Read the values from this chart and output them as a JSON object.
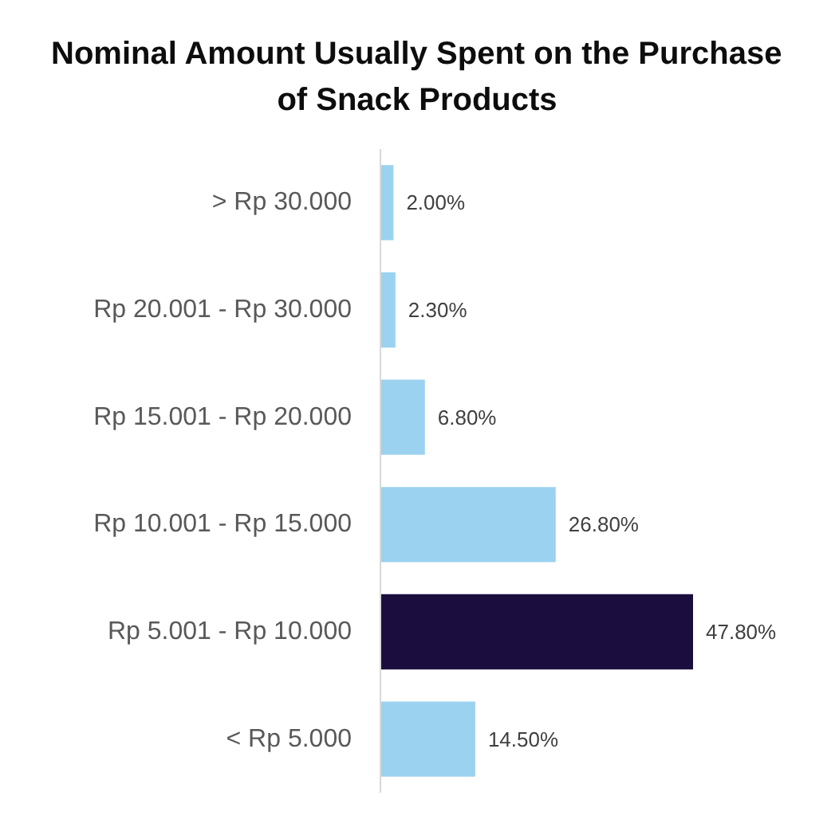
{
  "chart_data": {
    "type": "bar",
    "orientation": "horizontal",
    "title": "Nominal Amount Usually Spent on the Purchase of Snack Products",
    "categories": [
      "> Rp 30.000",
      "Rp 20.001 - Rp 30.000",
      "Rp 15.001 - Rp 20.000",
      "Rp 10.001 - Rp 15.000",
      "Rp 5.001 - Rp 10.000",
      "< Rp 5.000"
    ],
    "values": [
      2.0,
      2.3,
      6.8,
      26.8,
      47.8,
      14.5
    ],
    "colors": [
      "#9bd2f0",
      "#9bd2f0",
      "#9bd2f0",
      "#9bd2f0",
      "#1b0e3f",
      "#9bd2f0"
    ],
    "value_labels": [
      "2.00%",
      "2.30%",
      "6.80%",
      "26.80%",
      "47.80%",
      "14.50%"
    ],
    "tick_labels": "y"
  }
}
